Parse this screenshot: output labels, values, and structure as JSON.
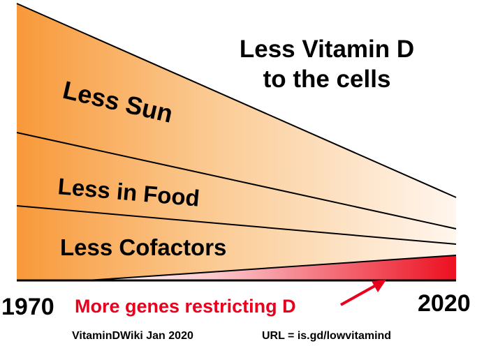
{
  "title": [
    "Less Vitamin D",
    "to the cells"
  ],
  "bands": [
    "Less Sun",
    "Less in Food",
    "Less Cofactors"
  ],
  "genes_label": "More genes restricting D",
  "start_year": "1970",
  "end_year": "2020",
  "footer": {
    "source": "VitaminDWiki  Jan 2020",
    "url": "URL = is.gd/lowvitamind"
  },
  "colors": {
    "orange": "#f7a040",
    "light": "#fff8f0",
    "red": "#e8001c",
    "line": "#000000"
  }
}
